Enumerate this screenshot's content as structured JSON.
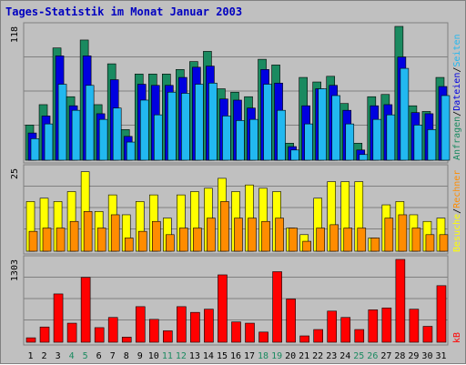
{
  "chart_data": {
    "type": "bar",
    "title": "Tages-Statistik im Monat Januar 2003",
    "categories": [
      "1",
      "2",
      "3",
      "4",
      "5",
      "6",
      "7",
      "8",
      "9",
      "10",
      "11",
      "12",
      "13",
      "14",
      "15",
      "16",
      "17",
      "18",
      "19",
      "20",
      "21",
      "22",
      "23",
      "24",
      "25",
      "26",
      "27",
      "28",
      "29",
      "30",
      "31"
    ],
    "weekend_days": [
      "4",
      "5",
      "11",
      "12",
      "18",
      "19",
      "25",
      "26"
    ],
    "colors": {
      "anfragen": "#1a8a60",
      "dateien": "#0000e0",
      "seiten": "#22b8f0",
      "besuche": "#ffff00",
      "rechner": "#ff8c00",
      "kb": "#ff0000",
      "weekday_label": "#000000",
      "weekend_label": "#1a8a60",
      "title": "#0000c0"
    },
    "panels": [
      {
        "ytick": "118",
        "ylim": [
          0,
          118
        ],
        "series": [
          {
            "name": "Anfragen",
            "values": [
              31,
              49,
              99,
              56,
              106,
              49,
              85,
              27,
              76,
              76,
              76,
              80,
              87,
              96,
              63,
              60,
              56,
              89,
              84,
              15,
              73,
              69,
              74,
              50,
              15,
              56,
              58,
              118,
              48,
              43,
              73
            ]
          },
          {
            "name": "Dateien",
            "values": [
              24,
              39,
              92,
              48,
              92,
              41,
              71,
              21,
              67,
              66,
              66,
              73,
              82,
              83,
              54,
              53,
              46,
              80,
              68,
              12,
              48,
              63,
              66,
              44,
              9,
              48,
              49,
              91,
              42,
              41,
              65
            ]
          },
          {
            "name": "Seiten",
            "values": [
              19,
              32,
              67,
              44,
              66,
              36,
              46,
              16,
              53,
              40,
              60,
              59,
              67,
              68,
              39,
              35,
              36,
              67,
              44,
              9,
              32,
              63,
              57,
              32,
              5,
              36,
              40,
              81,
              31,
              27,
              57
            ]
          }
        ]
      },
      {
        "ytick": "25",
        "ylim": [
          0,
          25
        ],
        "series": [
          {
            "name": "Besuche",
            "values": [
              15,
              16,
              15,
              18,
              24,
              12,
              17,
              11,
              15,
              17,
              10,
              17,
              18,
              19,
              22,
              18,
              20,
              19,
              18,
              7,
              5,
              16,
              21,
              21,
              21,
              4,
              14,
              15,
              11,
              9,
              10
            ]
          },
          {
            "name": "Rechner",
            "values": [
              6,
              7,
              7,
              9,
              12,
              7,
              11,
              4,
              6,
              9,
              5,
              7,
              7,
              10,
              15,
              10,
              10,
              9,
              10,
              7,
              3,
              7,
              8,
              7,
              7,
              4,
              10,
              11,
              7,
              5,
              5
            ]
          }
        ]
      },
      {
        "ytick": "1303",
        "ylim": [
          0,
          1303
        ],
        "series": [
          {
            "name": "kB",
            "values": [
              70,
              240,
              760,
              300,
              1020,
              230,
              390,
              80,
              560,
              360,
              180,
              560,
              470,
              520,
              1060,
              320,
              300,
              160,
              1110,
              680,
              100,
              200,
              490,
              390,
              200,
              510,
              540,
              1303,
              520,
              250,
              890
            ]
          }
        ]
      }
    ],
    "side_labels": {
      "top": [
        "Anfragen",
        "/",
        "Dateien",
        "/",
        "Seiten"
      ],
      "middle": [
        "Besuche",
        "/",
        "Rechner"
      ],
      "bottom": "kB"
    }
  }
}
